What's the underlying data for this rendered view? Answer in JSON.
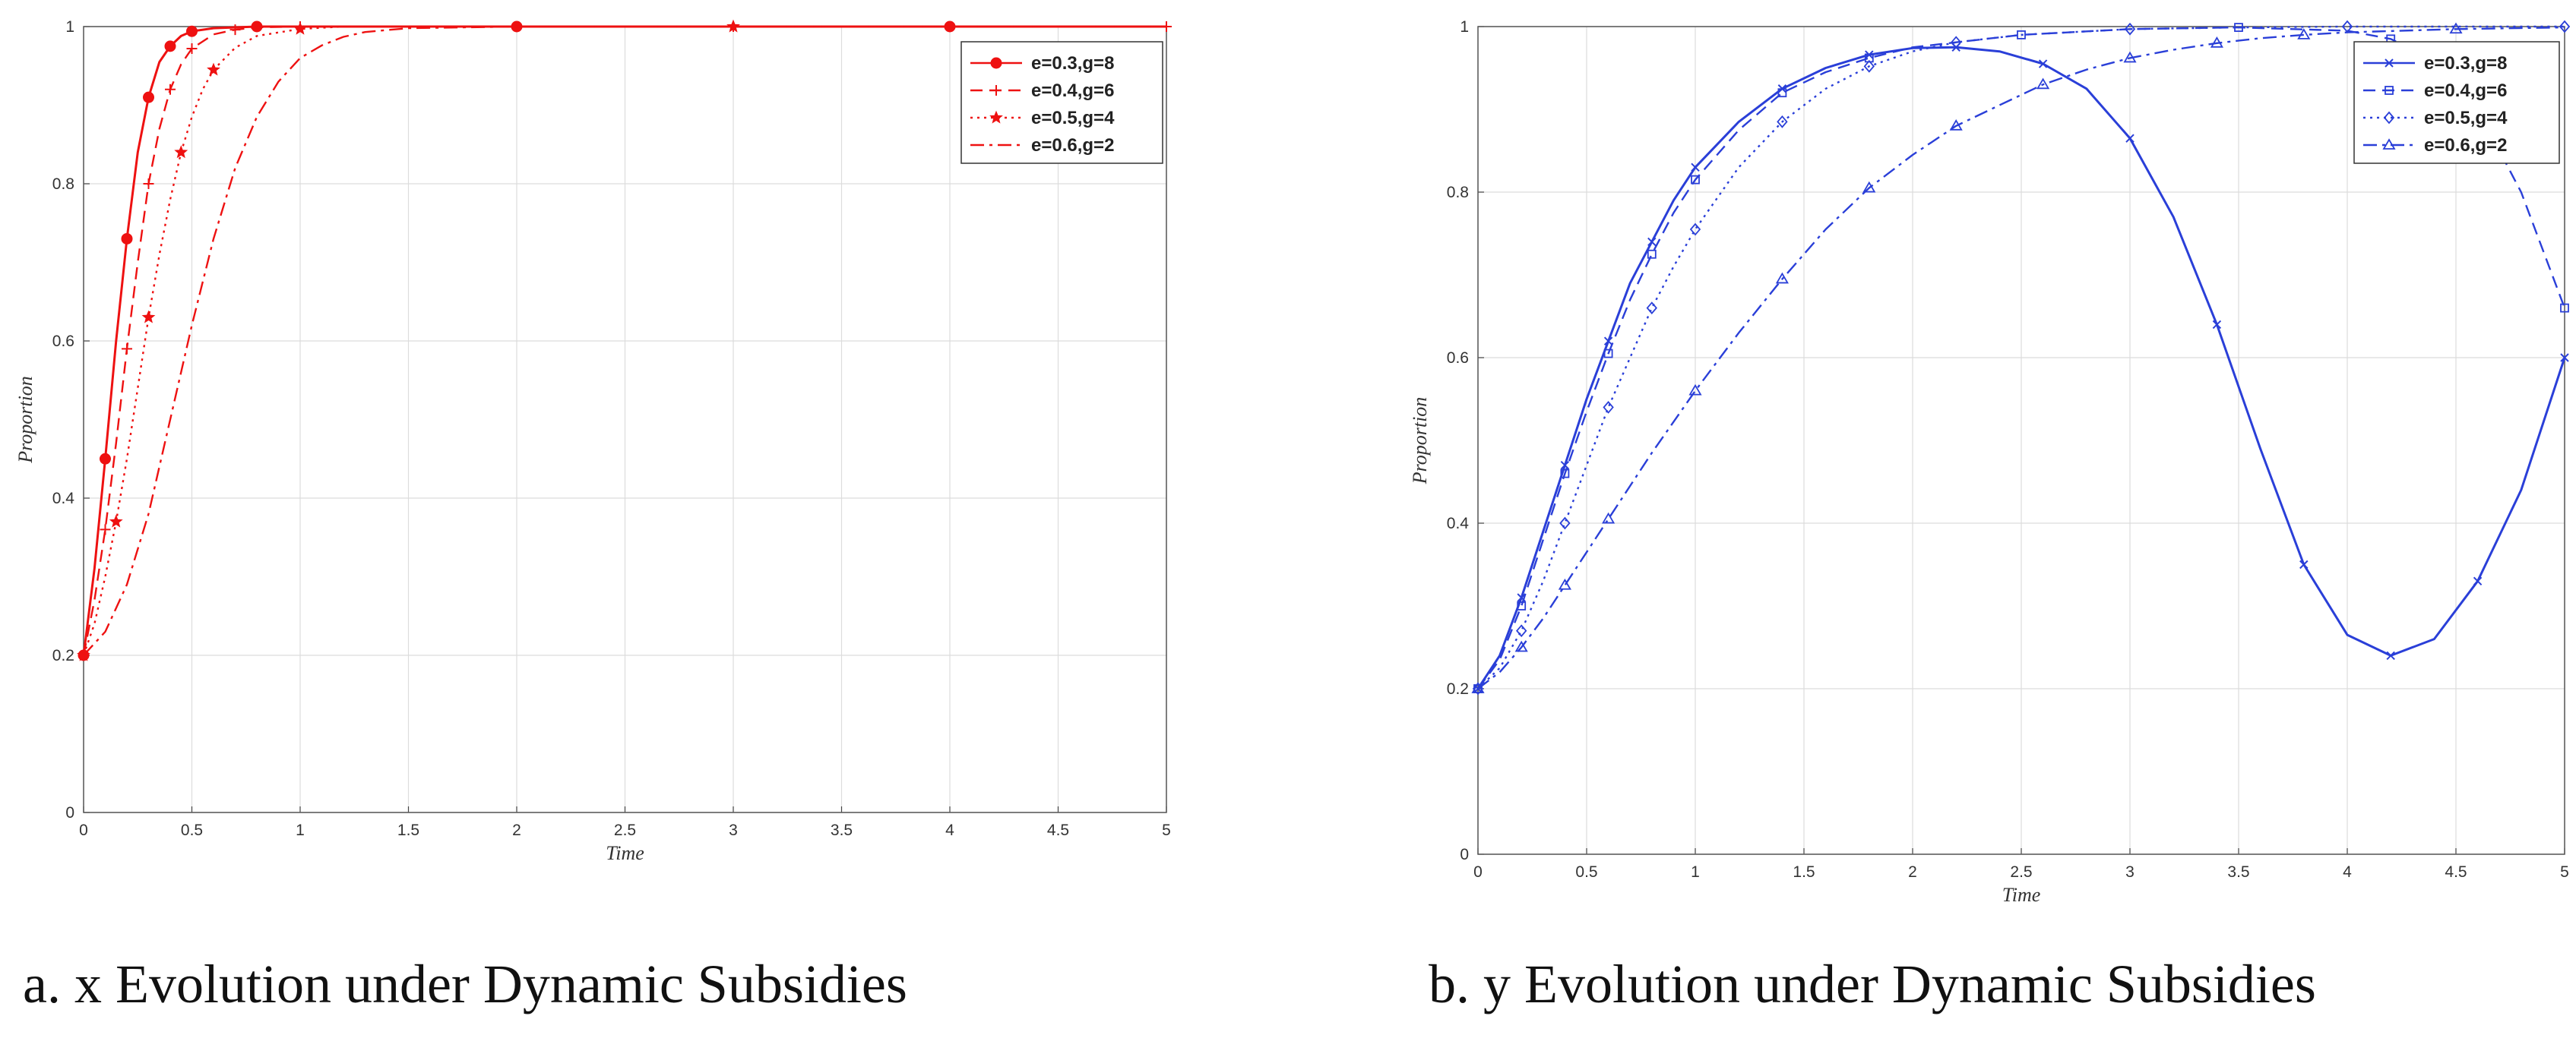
{
  "captions": {
    "a": "a. x Evolution under Dynamic Subsidies",
    "b": "b. y Evolution under Dynamic Subsidies"
  },
  "chart_data": [
    {
      "type": "line",
      "color": "#ee1111",
      "xlabel": "Time",
      "ylabel": "Proportion",
      "xlim": [
        0,
        5
      ],
      "ylim": [
        0,
        1
      ],
      "xticks": [
        "0",
        "0.5",
        "1",
        "1.5",
        "2",
        "2.5",
        "3",
        "3.5",
        "4",
        "4.5",
        "5"
      ],
      "yticks": [
        "0",
        "0.2",
        "0.4",
        "0.6",
        "0.8",
        "1"
      ],
      "grid": true,
      "legend_position": "top-right",
      "series": [
        {
          "name": "e=0.3,g=8",
          "line_style": "solid",
          "marker": "filled-circle",
          "x": [
            0,
            0.05,
            0.1,
            0.15,
            0.2,
            0.25,
            0.3,
            0.35,
            0.4,
            0.45,
            0.5,
            0.6,
            0.8,
            1.0,
            2.0,
            3.0,
            4.0,
            5.0
          ],
          "y": [
            0.2,
            0.31,
            0.45,
            0.6,
            0.73,
            0.84,
            0.91,
            0.955,
            0.975,
            0.988,
            0.994,
            0.998,
            1.0,
            1.0,
            1.0,
            1.0,
            1.0,
            1.0
          ]
        },
        {
          "name": "e=0.4,g=6",
          "line_style": "dashed",
          "marker": "plus",
          "x": [
            0,
            0.05,
            0.1,
            0.15,
            0.2,
            0.25,
            0.3,
            0.35,
            0.4,
            0.45,
            0.5,
            0.6,
            0.7,
            0.8,
            1.0,
            2.0,
            3.0,
            4.0,
            5.0
          ],
          "y": [
            0.2,
            0.27,
            0.36,
            0.47,
            0.59,
            0.7,
            0.8,
            0.87,
            0.92,
            0.952,
            0.972,
            0.99,
            0.996,
            0.999,
            1.0,
            1.0,
            1.0,
            1.0,
            1.0
          ]
        },
        {
          "name": "e=0.5,g=4",
          "line_style": "dotted",
          "marker": "filled-star",
          "x": [
            0,
            0.05,
            0.1,
            0.15,
            0.2,
            0.25,
            0.3,
            0.35,
            0.4,
            0.45,
            0.5,
            0.55,
            0.6,
            0.7,
            0.8,
            1.0,
            1.2,
            2.0,
            3.0,
            4.0,
            5.0
          ],
          "y": [
            0.2,
            0.24,
            0.3,
            0.37,
            0.45,
            0.54,
            0.63,
            0.71,
            0.78,
            0.84,
            0.885,
            0.92,
            0.945,
            0.973,
            0.988,
            0.997,
            1.0,
            1.0,
            1.0,
            1.0,
            1.0
          ]
        },
        {
          "name": "e=0.6,g=2",
          "line_style": "dash-dot",
          "marker": "none",
          "x": [
            0,
            0.1,
            0.2,
            0.3,
            0.4,
            0.5,
            0.6,
            0.7,
            0.8,
            0.9,
            1.0,
            1.1,
            1.2,
            1.3,
            1.5,
            2.0,
            3.0,
            4.0,
            5.0
          ],
          "y": [
            0.2,
            0.23,
            0.29,
            0.38,
            0.5,
            0.62,
            0.73,
            0.82,
            0.885,
            0.93,
            0.96,
            0.976,
            0.987,
            0.993,
            0.998,
            1.0,
            1.0,
            1.0,
            1.0
          ]
        }
      ]
    },
    {
      "type": "line",
      "color": "#2a3fd8",
      "xlabel": "Time",
      "ylabel": "Proportion",
      "xlim": [
        0,
        5
      ],
      "ylim": [
        0,
        1
      ],
      "xticks": [
        "0",
        "0.5",
        "1",
        "1.5",
        "2",
        "2.5",
        "3",
        "3.5",
        "4",
        "4.5",
        "5"
      ],
      "yticks": [
        "0",
        "0.2",
        "0.4",
        "0.6",
        "0.8",
        "1"
      ],
      "grid": true,
      "legend_position": "top-right",
      "series": [
        {
          "name": "e=0.3,g=8",
          "line_style": "solid",
          "marker": "cross",
          "x": [
            0,
            0.1,
            0.2,
            0.3,
            0.4,
            0.5,
            0.6,
            0.7,
            0.8,
            0.9,
            1.0,
            1.2,
            1.4,
            1.6,
            1.8,
            2.0,
            2.2,
            2.4,
            2.6,
            2.8,
            3.0,
            3.2,
            3.4,
            3.6,
            3.8,
            4.0,
            4.2,
            4.4,
            4.6,
            4.8,
            5.0
          ],
          "y": [
            0.2,
            0.24,
            0.31,
            0.39,
            0.47,
            0.55,
            0.62,
            0.69,
            0.74,
            0.79,
            0.83,
            0.885,
            0.925,
            0.95,
            0.966,
            0.974,
            0.975,
            0.97,
            0.955,
            0.925,
            0.865,
            0.77,
            0.64,
            0.49,
            0.35,
            0.265,
            0.24,
            0.26,
            0.33,
            0.44,
            0.6
          ]
        },
        {
          "name": "e=0.4,g=6",
          "line_style": "dashed",
          "marker": "square",
          "x": [
            0,
            0.1,
            0.2,
            0.3,
            0.4,
            0.5,
            0.6,
            0.7,
            0.8,
            0.9,
            1.0,
            1.2,
            1.4,
            1.6,
            1.8,
            2.0,
            2.5,
            3.0,
            3.5,
            4.0,
            4.2,
            4.4,
            4.6,
            4.8,
            5.0
          ],
          "y": [
            0.2,
            0.235,
            0.3,
            0.38,
            0.46,
            0.535,
            0.605,
            0.67,
            0.725,
            0.775,
            0.815,
            0.875,
            0.92,
            0.945,
            0.962,
            0.975,
            0.99,
            0.997,
            0.999,
            0.995,
            0.985,
            0.96,
            0.9,
            0.8,
            0.66
          ]
        },
        {
          "name": "e=0.5,g=4",
          "line_style": "dotted",
          "marker": "diamond",
          "x": [
            0,
            0.1,
            0.2,
            0.3,
            0.4,
            0.5,
            0.6,
            0.7,
            0.8,
            0.9,
            1.0,
            1.2,
            1.4,
            1.6,
            1.8,
            2.0,
            2.2,
            2.5,
            3.0,
            3.5,
            4.0,
            4.5,
            5.0
          ],
          "y": [
            0.2,
            0.225,
            0.27,
            0.33,
            0.4,
            0.47,
            0.54,
            0.6,
            0.66,
            0.71,
            0.755,
            0.83,
            0.885,
            0.925,
            0.952,
            0.97,
            0.981,
            0.99,
            0.997,
            0.999,
            1.0,
            1.0,
            1.0
          ]
        },
        {
          "name": "e=0.6,g=2",
          "line_style": "dash-dot",
          "marker": "triangle",
          "x": [
            0,
            0.1,
            0.2,
            0.3,
            0.4,
            0.5,
            0.6,
            0.8,
            1.0,
            1.2,
            1.4,
            1.6,
            1.8,
            2.0,
            2.2,
            2.4,
            2.6,
            2.8,
            3.0,
            3.2,
            3.4,
            3.6,
            3.8,
            4.0,
            4.5,
            5.0
          ],
          "y": [
            0.2,
            0.22,
            0.25,
            0.285,
            0.325,
            0.365,
            0.405,
            0.485,
            0.56,
            0.63,
            0.695,
            0.755,
            0.805,
            0.845,
            0.88,
            0.905,
            0.93,
            0.948,
            0.962,
            0.972,
            0.98,
            0.986,
            0.99,
            0.993,
            0.997,
            0.999
          ]
        }
      ]
    }
  ]
}
